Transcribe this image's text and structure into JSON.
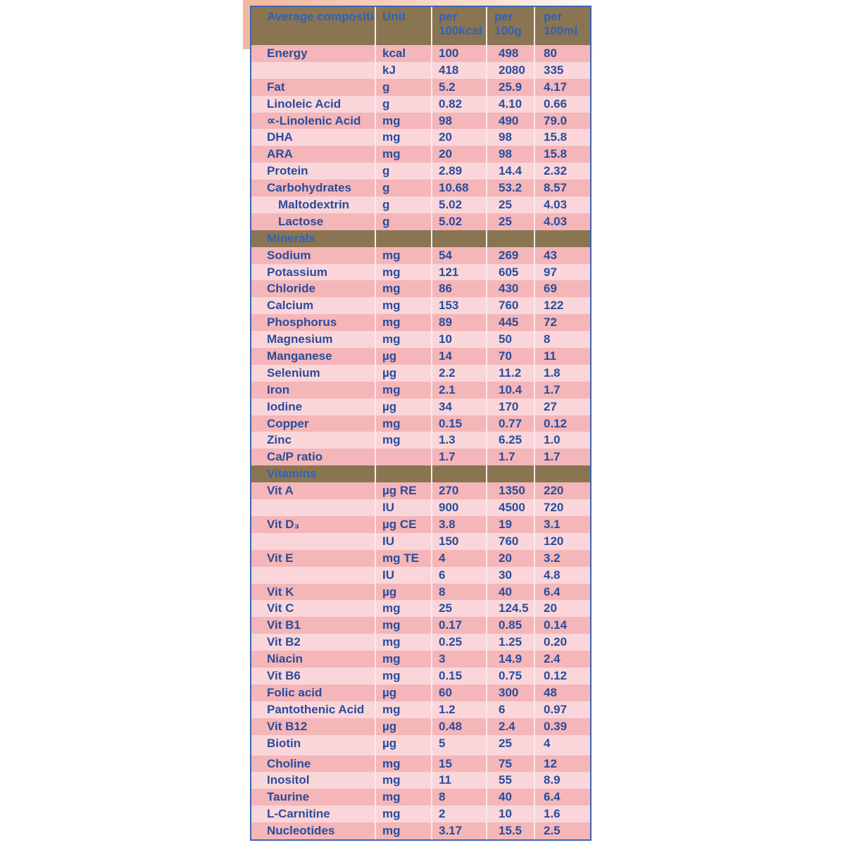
{
  "colors": {
    "header_bg": "#8a7552",
    "row_dark": "#f4b6b8",
    "row_light": "#fad6da",
    "text": "#2a4c9c",
    "border": "#3d64b0"
  },
  "header": [
    "Average composition",
    "Unit",
    "per 100kcal",
    "per 100g",
    "per 100ml"
  ],
  "rows": [
    {
      "name": "Energy",
      "unit": "kcal",
      "v": [
        "100",
        "498",
        "80"
      ]
    },
    {
      "name": "",
      "unit": "kJ",
      "v": [
        "418",
        "2080",
        "335"
      ]
    },
    {
      "name": "Fat",
      "unit": "g",
      "v": [
        "5.2",
        "25.9",
        "4.17"
      ]
    },
    {
      "name": "Linoleic Acid",
      "unit": "g",
      "v": [
        "0.82",
        "4.10",
        "0.66"
      ]
    },
    {
      "name": "∝-Linolenic Acid",
      "unit": "mg",
      "v": [
        "98",
        "490",
        "79.0"
      ]
    },
    {
      "name": "DHA",
      "unit": "mg",
      "v": [
        "20",
        "98",
        "15.8"
      ]
    },
    {
      "name": "ARA",
      "unit": "mg",
      "v": [
        "20",
        "98",
        "15.8"
      ]
    },
    {
      "name": "Protein",
      "unit": "g",
      "v": [
        "2.89",
        "14.4",
        "2.32"
      ]
    },
    {
      "name": "Carbohydrates",
      "unit": "g",
      "v": [
        "10.68",
        "53.2",
        "8.57"
      ]
    },
    {
      "name": "Maltodextrin",
      "unit": "g",
      "v": [
        "5.02",
        "25",
        "4.03"
      ],
      "indent": true
    },
    {
      "name": "Lactose",
      "unit": "g",
      "v": [
        "5.02",
        "25",
        "4.03"
      ],
      "indent": true
    },
    {
      "section": "Minerals"
    },
    {
      "name": "Sodium",
      "unit": "mg",
      "v": [
        "54",
        "269",
        "43"
      ]
    },
    {
      "name": "Potassium",
      "unit": "mg",
      "v": [
        "121",
        "605",
        "97"
      ]
    },
    {
      "name": "Chloride",
      "unit": "mg",
      "v": [
        "86",
        "430",
        "69"
      ]
    },
    {
      "name": "Calcium",
      "unit": "mg",
      "v": [
        "153",
        "760",
        "122"
      ]
    },
    {
      "name": "Phosphorus",
      "unit": "mg",
      "v": [
        "89",
        "445",
        "72"
      ]
    },
    {
      "name": "Magnesium",
      "unit": "mg",
      "v": [
        "10",
        "50",
        "8"
      ]
    },
    {
      "name": "Manganese",
      "unit": "µg",
      "v": [
        "14",
        "70",
        "11"
      ]
    },
    {
      "name": "Selenium",
      "unit": "µg",
      "v": [
        "2.2",
        "11.2",
        "1.8"
      ]
    },
    {
      "name": "Iron",
      "unit": "mg",
      "v": [
        "2.1",
        "10.4",
        "1.7"
      ]
    },
    {
      "name": "Iodine",
      "unit": "µg",
      "v": [
        "34",
        "170",
        "27"
      ]
    },
    {
      "name": "Copper",
      "unit": "mg",
      "v": [
        "0.15",
        "0.77",
        "0.12"
      ]
    },
    {
      "name": "Zinc",
      "unit": "mg",
      "v": [
        "1.3",
        "6.25",
        "1.0"
      ]
    },
    {
      "name": "Ca/P ratio",
      "unit": "",
      "v": [
        "1.7",
        "1.7",
        "1.7"
      ]
    },
    {
      "section": "Vitamins"
    },
    {
      "name": "Vit A",
      "unit": "µg RE",
      "v": [
        "270",
        "1350",
        "220"
      ]
    },
    {
      "name": "",
      "unit": "IU",
      "v": [
        "900",
        "4500",
        "720"
      ]
    },
    {
      "name": "Vit D₃",
      "unit": "µg CE",
      "v": [
        "3.8",
        "19",
        "3.1"
      ]
    },
    {
      "name": "",
      "unit": "IU",
      "v": [
        "150",
        "760",
        "120"
      ]
    },
    {
      "name": "Vit E",
      "unit": "mg TE",
      "v": [
        "4",
        "20",
        "3.2"
      ]
    },
    {
      "name": "",
      "unit": "IU",
      "v": [
        "6",
        "30",
        "4.8"
      ]
    },
    {
      "name": "Vit K",
      "unit": "µg",
      "v": [
        "8",
        "40",
        "6.4"
      ]
    },
    {
      "name": "Vit C",
      "unit": "mg",
      "v": [
        "25",
        "124.5",
        "20"
      ]
    },
    {
      "name": "Vit B1",
      "unit": "mg",
      "v": [
        "0.17",
        "0.85",
        "0.14"
      ]
    },
    {
      "name": "Vit B2",
      "unit": "mg",
      "v": [
        "0.25",
        "1.25",
        "0.20"
      ]
    },
    {
      "name": "Niacin",
      "unit": "mg",
      "v": [
        "3",
        "14.9",
        "2.4"
      ]
    },
    {
      "name": "Vit B6",
      "unit": "mg",
      "v": [
        "0.15",
        "0.75",
        "0.12"
      ]
    },
    {
      "name": "Folic acid",
      "unit": "µg",
      "v": [
        "60",
        "300",
        "48"
      ]
    },
    {
      "name": "Pantothenic Acid",
      "unit": "mg",
      "v": [
        "1.2",
        "6",
        "0.97"
      ]
    },
    {
      "name": "Vit B12",
      "unit": "µg",
      "v": [
        "0.48",
        "2.4",
        "0.39"
      ]
    },
    {
      "name": "Biotin",
      "unit": "µg",
      "v": [
        "5",
        "25",
        "4"
      ],
      "tall": true
    },
    {
      "name": "Choline",
      "unit": "mg",
      "v": [
        "15",
        "75",
        "12"
      ]
    },
    {
      "name": "Inositol",
      "unit": "mg",
      "v": [
        "11",
        "55",
        "8.9"
      ]
    },
    {
      "name": "Taurine",
      "unit": "mg",
      "v": [
        "8",
        "40",
        "6.4"
      ]
    },
    {
      "name": "L-Carnitine",
      "unit": "mg",
      "v": [
        "2",
        "10",
        "1.6"
      ]
    },
    {
      "name": "Nucleotides",
      "unit": "mg",
      "v": [
        "3.17",
        "15.5",
        "2.5"
      ]
    }
  ]
}
